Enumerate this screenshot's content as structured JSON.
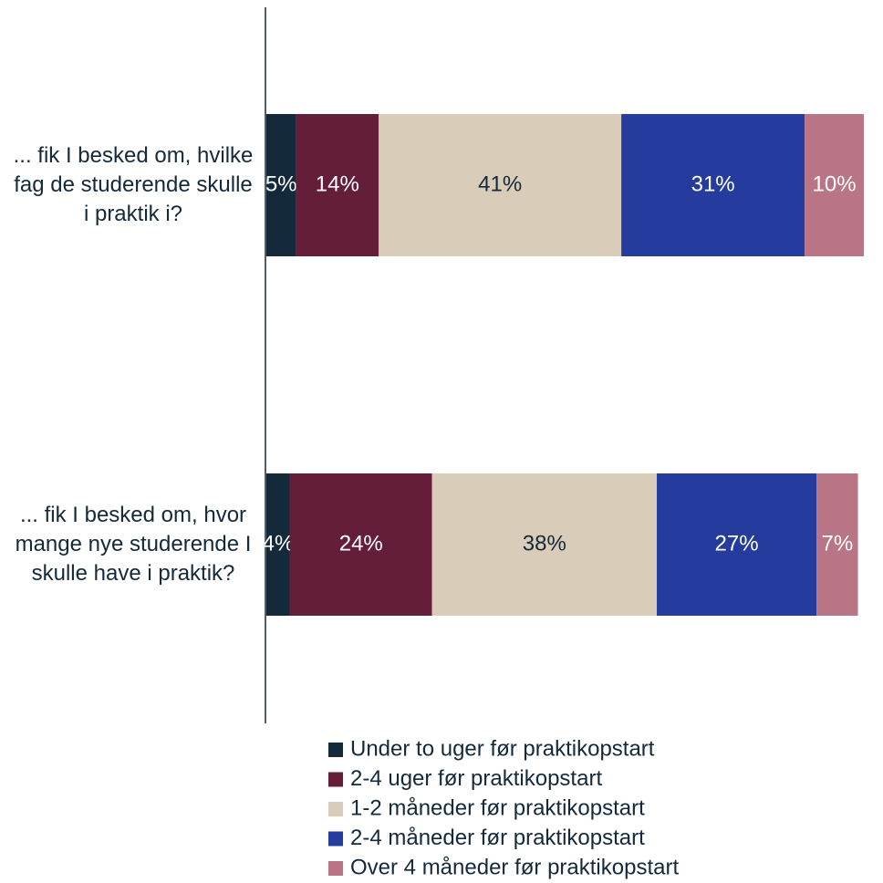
{
  "chart_data": {
    "type": "stacked-bar-horizontal",
    "categories": [
      "... fik I besked om, hvilke fag de studerende skulle i praktik i?",
      "... fik I besked om, hvor mange nye studerende I skulle have i praktik?"
    ],
    "xlim": [
      0,
      101
    ],
    "series": [
      {
        "name": "Under to uger før praktikopstart",
        "color": "#142a3a",
        "values": [
          5,
          4
        ],
        "value_labels": [
          "5%",
          "4%"
        ]
      },
      {
        "name": "2-4 uger før praktikopstart",
        "color": "#641e3a",
        "values": [
          14,
          24
        ],
        "value_labels": [
          "14%",
          "24%"
        ]
      },
      {
        "name": "1-2 måneder før praktikopstart",
        "color": "#d9ccb9",
        "values": [
          41,
          38
        ],
        "value_labels": [
          "41%",
          "38%"
        ]
      },
      {
        "name": "2-4 måneder før praktikopstart",
        "color": "#253c9e",
        "values": [
          31,
          27
        ],
        "value_labels": [
          "31%",
          "27%"
        ]
      },
      {
        "name": "Over 4 måneder før praktikopstart",
        "color": "#b97585",
        "values": [
          10,
          7
        ],
        "value_labels": [
          "10%",
          "7%"
        ]
      }
    ],
    "legend": "bottom"
  }
}
